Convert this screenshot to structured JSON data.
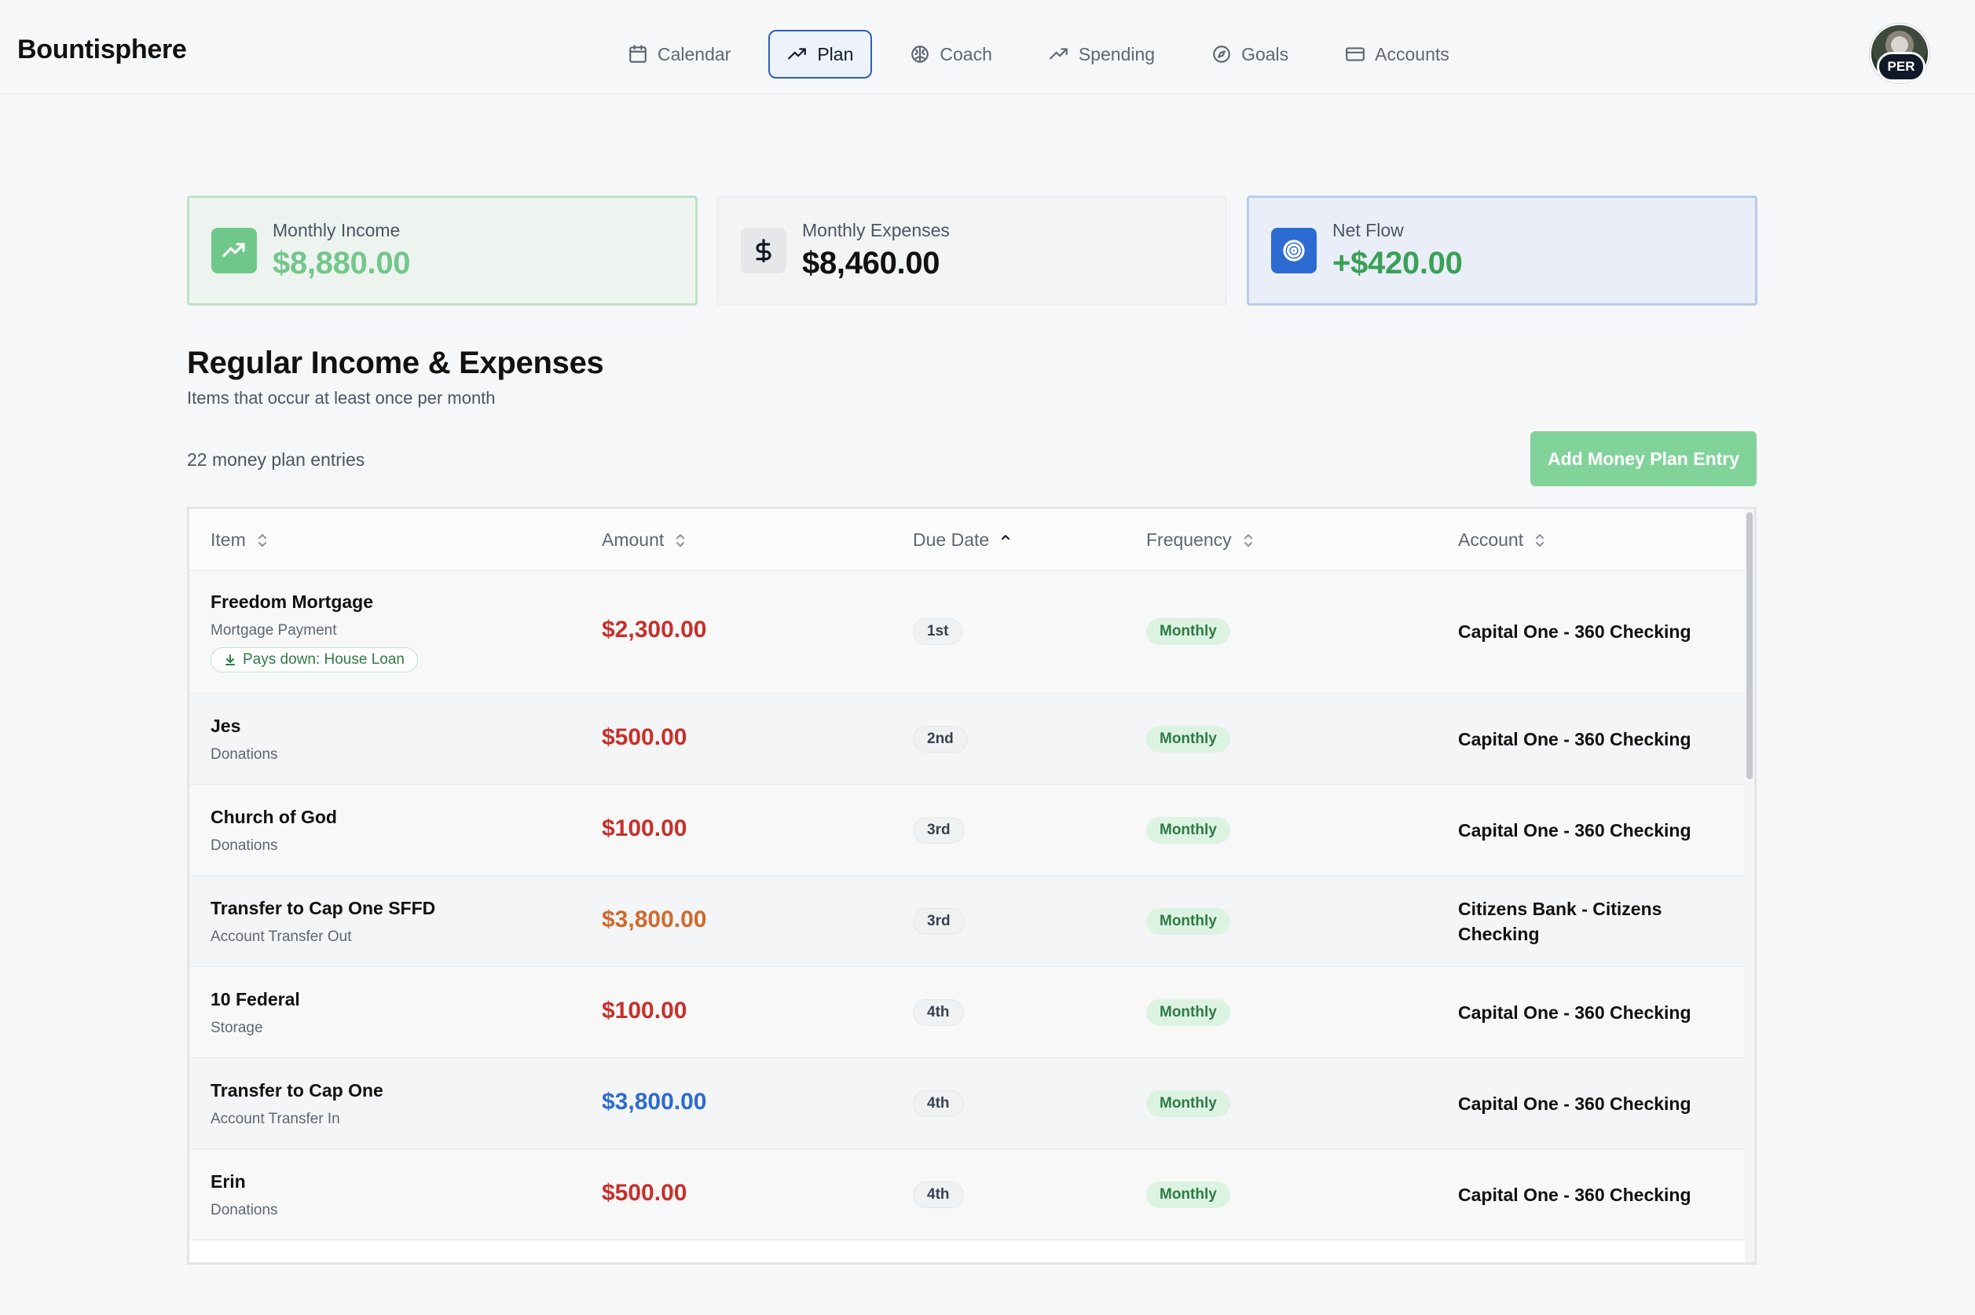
{
  "app": {
    "brand": "Bountisphere",
    "avatar_label": "PER"
  },
  "nav": [
    {
      "label": "Calendar",
      "icon": "calendar-icon",
      "active": false
    },
    {
      "label": "Plan",
      "icon": "trending-up-icon",
      "active": true
    },
    {
      "label": "Coach",
      "icon": "brain-icon",
      "active": false
    },
    {
      "label": "Spending",
      "icon": "trending-up-icon",
      "active": false
    },
    {
      "label": "Goals",
      "icon": "compass-icon",
      "active": false
    },
    {
      "label": "Accounts",
      "icon": "credit-card-icon",
      "active": false
    }
  ],
  "summary": {
    "income": {
      "label": "Monthly Income",
      "value": "$8,880.00",
      "icon": "trending-up-icon",
      "color": "#74c68c"
    },
    "expenses": {
      "label": "Monthly Expenses",
      "value": "$8,460.00",
      "icon": "dollar-sign-icon",
      "color": "#111111"
    },
    "net": {
      "label": "Net Flow",
      "value": "+$420.00",
      "icon": "target-icon",
      "color": "#3aa157"
    }
  },
  "section": {
    "title": "Regular Income & Expenses",
    "subtitle": "Items that occur at least once per month",
    "count_text": "22 money plan entries",
    "add_button": "Add Money Plan Entry"
  },
  "table": {
    "columns": [
      {
        "label": "Item",
        "sort": "none"
      },
      {
        "label": "Amount",
        "sort": "none"
      },
      {
        "label": "Due Date",
        "sort": "asc"
      },
      {
        "label": "Frequency",
        "sort": "none"
      },
      {
        "label": "Account",
        "sort": "none"
      }
    ],
    "rows": [
      {
        "name": "Freedom Mortgage",
        "category": "Mortgage Payment",
        "tag": "Pays down: House Loan",
        "amount": "$2,300.00",
        "amount_color": "red",
        "due": "1st",
        "frequency": "Monthly",
        "account": "Capital One - 360 Checking"
      },
      {
        "name": "Jes",
        "category": "Donations",
        "amount": "$500.00",
        "amount_color": "red",
        "due": "2nd",
        "frequency": "Monthly",
        "account": "Capital One - 360 Checking"
      },
      {
        "name": "Church of God",
        "category": "Donations",
        "amount": "$100.00",
        "amount_color": "red",
        "due": "3rd",
        "frequency": "Monthly",
        "account": "Capital One - 360 Checking"
      },
      {
        "name": "Transfer to Cap One SFFD",
        "category": "Account Transfer Out",
        "amount": "$3,800.00",
        "amount_color": "orange",
        "due": "3rd",
        "frequency": "Monthly",
        "account": "Citizens Bank - Citizens Checking"
      },
      {
        "name": "10 Federal",
        "category": "Storage",
        "amount": "$100.00",
        "amount_color": "red",
        "due": "4th",
        "frequency": "Monthly",
        "account": "Capital One - 360 Checking"
      },
      {
        "name": "Transfer to Cap One",
        "category": "Account Transfer In",
        "amount": "$3,800.00",
        "amount_color": "blue",
        "due": "4th",
        "frequency": "Monthly",
        "account": "Capital One - 360 Checking"
      },
      {
        "name": "Erin",
        "category": "Donations",
        "amount": "$500.00",
        "amount_color": "red",
        "due": "4th",
        "frequency": "Monthly",
        "account": "Capital One - 360 Checking"
      }
    ]
  }
}
